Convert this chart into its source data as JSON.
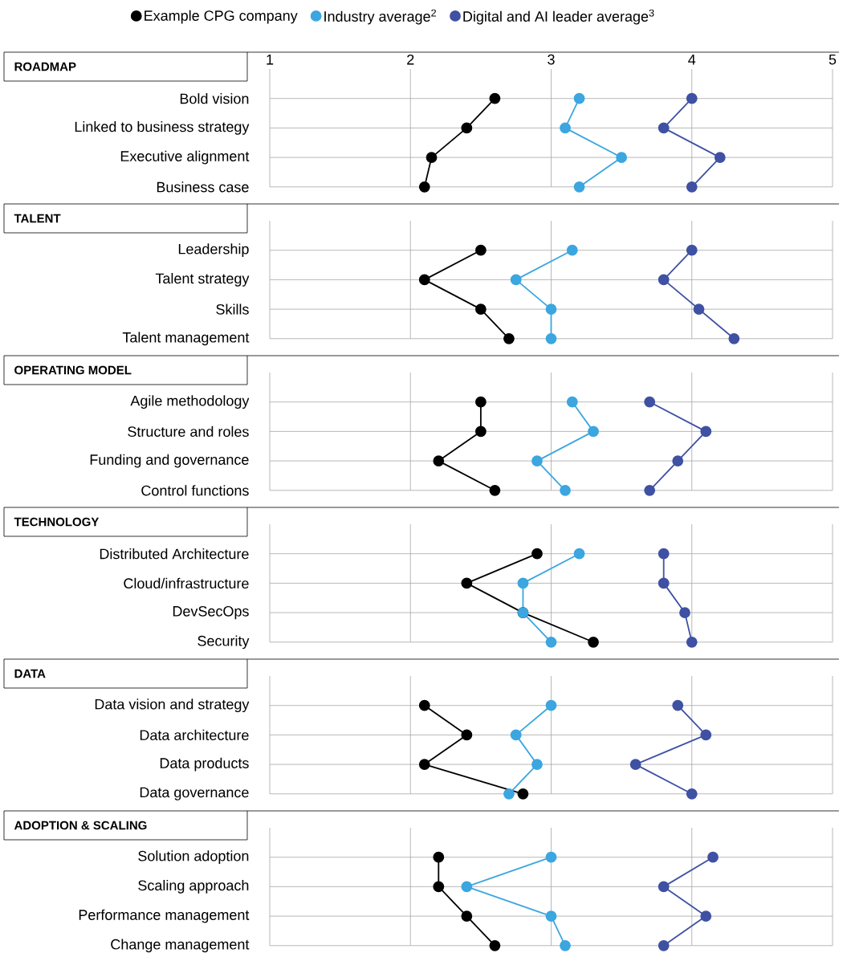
{
  "chart_data": [
    {
      "type": "line",
      "orientation": "horizontal",
      "title": "ROADMAP",
      "categories": [
        "Bold vision",
        "Linked to business strategy",
        "Executive alignment",
        "Business case"
      ],
      "xlim": [
        1,
        5
      ],
      "xticks": [
        1,
        2,
        3,
        4,
        5
      ],
      "grid": true,
      "marker": "circle",
      "legend": "top",
      "series": [
        {
          "name": "Example CPG company",
          "color": "#000000",
          "values": [
            2.6,
            2.4,
            2.15,
            2.1
          ]
        },
        {
          "name": "Industry average$^{2}$",
          "color": "#3ba6e0",
          "values": [
            3.2,
            3.1,
            3.5,
            3.2
          ]
        },
        {
          "name": "Digital and AI leader average$^{3}$",
          "color": "#3f51a3",
          "values": [
            4.0,
            3.8,
            4.2,
            4.0
          ]
        }
      ]
    },
    {
      "type": "line",
      "orientation": "horizontal",
      "title": "TALENT",
      "categories": [
        "Leadership",
        "Talent strategy",
        "Skills",
        "Talent management"
      ],
      "xlim": [
        1,
        5
      ],
      "xticks": [
        1,
        2,
        3,
        4,
        5
      ],
      "grid": true,
      "marker": "circle",
      "tick_labels": "y",
      "series": [
        {
          "color": "#000000",
          "values": [
            2.5,
            2.1,
            2.5,
            2.7
          ]
        },
        {
          "color": "#3ba6e0",
          "values": [
            3.15,
            2.75,
            3.0,
            3.0
          ]
        },
        {
          "color": "#3f51a3",
          "values": [
            4.0,
            3.8,
            4.05,
            4.3
          ]
        }
      ]
    },
    {
      "type": "line",
      "orientation": "horizontal",
      "title": "OPERATING MODEL",
      "categories": [
        "Agile methodology",
        "Structure and roles",
        "Funding and governance",
        "Control functions"
      ],
      "xlim": [
        1,
        5
      ],
      "xticks": [
        1,
        2,
        3,
        4,
        5
      ],
      "grid": true,
      "marker": "circle",
      "tick_labels": "y",
      "series": [
        {
          "color": "#000000",
          "values": [
            2.5,
            2.5,
            2.2,
            2.6
          ]
        },
        {
          "color": "#3ba6e0",
          "values": [
            3.15,
            3.3,
            2.9,
            3.1
          ]
        },
        {
          "color": "#3f51a3",
          "values": [
            3.7,
            4.1,
            3.9,
            3.7
          ]
        }
      ]
    },
    {
      "type": "line",
      "orientation": "horizontal",
      "title": "TECHNOLOGY",
      "categories": [
        "Distributed Architecture",
        "Cloud/infrastructure",
        "DevSecOps",
        "Security"
      ],
      "xlim": [
        1,
        5
      ],
      "xticks": [
        1,
        2,
        3,
        4,
        5
      ],
      "grid": true,
      "marker": "circle",
      "tick_labels": "y",
      "series": [
        {
          "color": "#000000",
          "values": [
            2.9,
            2.4,
            2.8,
            3.3
          ]
        },
        {
          "color": "#3ba6e0",
          "values": [
            3.2,
            2.8,
            2.8,
            3.0
          ]
        },
        {
          "color": "#3f51a3",
          "values": [
            3.8,
            3.8,
            3.95,
            4.0
          ]
        }
      ]
    },
    {
      "type": "line",
      "orientation": "horizontal",
      "title": "DATA",
      "categories": [
        "Data vision and strategy",
        "Data architecture",
        "Data products",
        "Data governance"
      ],
      "xlim": [
        1,
        5
      ],
      "xticks": [
        1,
        2,
        3,
        4,
        5
      ],
      "grid": true,
      "marker": "circle",
      "tick_labels": "y",
      "series": [
        {
          "color": "#000000",
          "values": [
            2.1,
            2.4,
            2.1,
            2.8
          ]
        },
        {
          "color": "#3ba6e0",
          "values": [
            3.0,
            2.75,
            2.9,
            2.7
          ]
        },
        {
          "color": "#3f51a3",
          "values": [
            3.9,
            4.1,
            3.6,
            4.0
          ]
        }
      ]
    },
    {
      "type": "line",
      "orientation": "horizontal",
      "title": "ADOPTION & SCALING",
      "categories": [
        "Solution adoption",
        "Scaling approach",
        "Performance management",
        "Change management"
      ],
      "xlim": [
        1,
        5
      ],
      "xticks": [
        1,
        2,
        3,
        4,
        5
      ],
      "grid": true,
      "marker": "circle",
      "tick_labels": "y",
      "series": [
        {
          "color": "#000000",
          "values": [
            2.2,
            2.2,
            2.4,
            2.6
          ]
        },
        {
          "color": "#3ba6e0",
          "values": [
            3.0,
            2.4,
            3.0,
            3.1
          ]
        },
        {
          "color": "#3f51a3",
          "values": [
            4.15,
            3.8,
            4.1,
            3.8
          ]
        }
      ]
    }
  ]
}
